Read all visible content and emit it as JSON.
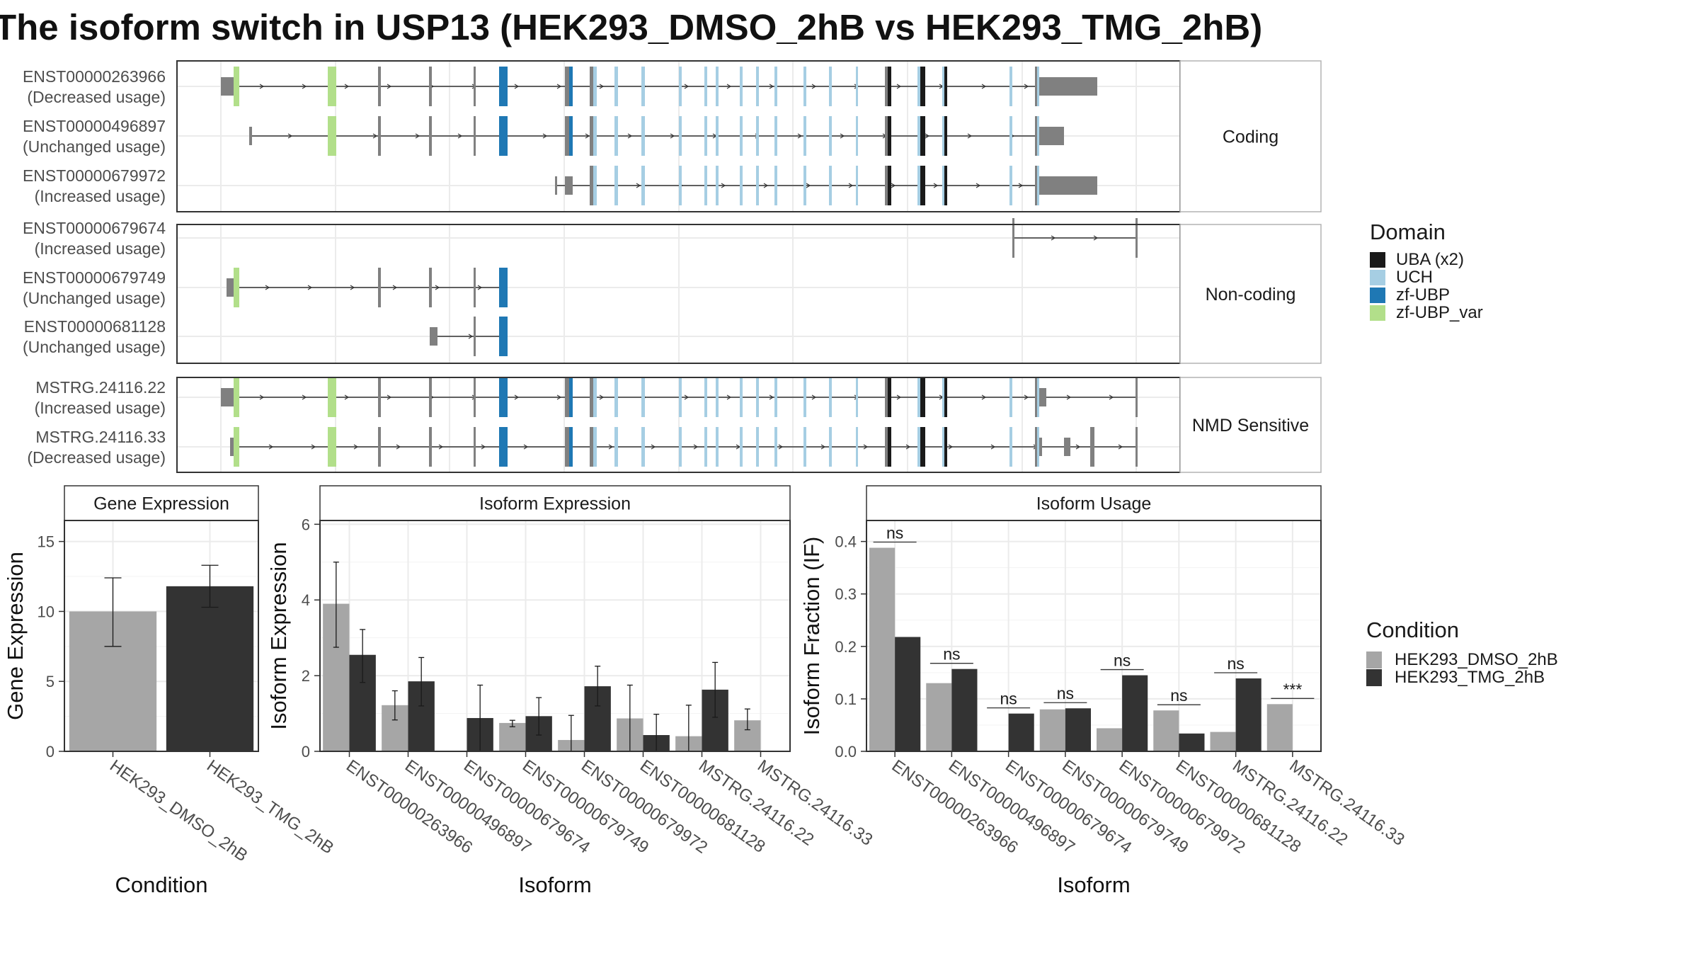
{
  "title": "The isoform switch in USP13 (HEK293_DMSO_2hB vs HEK293_TMG_2hB)",
  "colors": {
    "UBA (x2)": "#1a1a1a",
    "UCH": "#a6cee3",
    "zf-UBP": "#1f78b4",
    "zf-UBP_var": "#b2df8a",
    "exon": "#808080",
    "DMSO": "#a6a6a6",
    "TMG": "#333333"
  },
  "structure": {
    "groups": [
      {
        "label": "Coding",
        "rows": [
          {
            "id": "ENST00000263966",
            "usage": "(Decreased usage)"
          },
          {
            "id": "ENST00000496897",
            "usage": "(Unchanged usage)"
          },
          {
            "id": "ENST00000679972",
            "usage": "(Increased usage)"
          }
        ]
      },
      {
        "label": "Non-coding",
        "rows": [
          {
            "id": "ENST00000679674",
            "usage": "(Increased usage)"
          },
          {
            "id": "ENST00000679749",
            "usage": "(Unchanged usage)"
          },
          {
            "id": "ENST00000681128",
            "usage": "(Unchanged usage)"
          }
        ]
      },
      {
        "label": "NMD Sensitive",
        "rows": [
          {
            "id": "MSTRG.24116.22",
            "usage": "(Increased usage)"
          },
          {
            "id": "MSTRG.24116.33",
            "usage": "(Decreased usage)"
          }
        ]
      }
    ]
  },
  "legend_domain": {
    "title": "Domain",
    "items": [
      "UBA (x2)",
      "UCH",
      "zf-UBP",
      "zf-UBP_var"
    ]
  },
  "legend_condition": {
    "title": "Condition",
    "items": [
      "HEK293_DMSO_2hB",
      "HEK293_TMG_2hB"
    ]
  },
  "chart_data": [
    {
      "type": "bar",
      "title": "Gene Expression",
      "xlabel": "Condition",
      "ylabel": "Gene Expression",
      "ylim": [
        0,
        16.5
      ],
      "yticks": [
        0,
        5,
        10,
        15
      ],
      "categories": [
        "HEK293_DMSO_2hB",
        "HEK293_TMG_2hB"
      ],
      "values": [
        10.0,
        11.8
      ],
      "error": [
        [
          7.5,
          12.4
        ],
        [
          10.3,
          13.3
        ]
      ]
    },
    {
      "type": "bar",
      "title": "Isoform Expression",
      "xlabel": "Isoform",
      "ylabel": "Isoform Expression",
      "ylim": [
        0,
        6.1
      ],
      "yticks": [
        0,
        2,
        4,
        6
      ],
      "categories": [
        "ENST00000263966",
        "ENST00000496897",
        "ENST00000679674",
        "ENST00000679749",
        "ENST00000679972",
        "ENST00000681128",
        "MSTRG.24116.22",
        "MSTRG.24116.33"
      ],
      "series": [
        {
          "name": "HEK293_DMSO_2hB",
          "values": [
            3.9,
            1.22,
            0.0,
            0.75,
            0.3,
            0.87,
            0.4,
            0.82
          ],
          "error": [
            [
              2.75,
              5.0
            ],
            [
              0.83,
              1.6
            ],
            [
              0.0,
              0.0
            ],
            [
              0.65,
              0.82
            ],
            [
              0.0,
              0.95
            ],
            [
              0.0,
              1.75
            ],
            [
              0.0,
              1.22
            ],
            [
              0.57,
              1.12
            ]
          ]
        },
        {
          "name": "HEK293_TMG_2hB",
          "values": [
            2.55,
            1.85,
            0.88,
            0.93,
            1.72,
            0.43,
            1.63,
            0.0
          ],
          "error": [
            [
              1.82,
              3.22
            ],
            [
              1.2,
              2.48
            ],
            [
              0.0,
              1.75
            ],
            [
              0.43,
              1.42
            ],
            [
              1.2,
              2.25
            ],
            [
              0.0,
              0.98
            ],
            [
              0.9,
              2.35
            ],
            [
              0.0,
              0.0
            ]
          ]
        }
      ]
    },
    {
      "type": "bar",
      "title": "Isoform Usage",
      "xlabel": "Isoform",
      "ylabel": "Isoform Fraction (IF)",
      "ylim": [
        0,
        0.44
      ],
      "yticks": [
        "0.0",
        "0.1",
        "0.2",
        "0.3",
        "0.4"
      ],
      "categories": [
        "ENST00000263966",
        "ENST00000496897",
        "ENST00000679674",
        "ENST00000679749",
        "ENST00000679972",
        "ENST00000681128",
        "MSTRG.24116.22",
        "MSTRG.24116.33"
      ],
      "series": [
        {
          "name": "HEK293_DMSO_2hB",
          "values": [
            0.388,
            0.13,
            0.0,
            0.08,
            0.044,
            0.078,
            0.037,
            0.09
          ]
        },
        {
          "name": "HEK293_TMG_2hB",
          "values": [
            0.218,
            0.157,
            0.072,
            0.082,
            0.145,
            0.034,
            0.139,
            0.0
          ]
        }
      ],
      "significance": [
        "ns",
        "ns",
        "ns",
        "ns",
        "ns",
        "ns",
        "ns",
        "***"
      ]
    }
  ]
}
